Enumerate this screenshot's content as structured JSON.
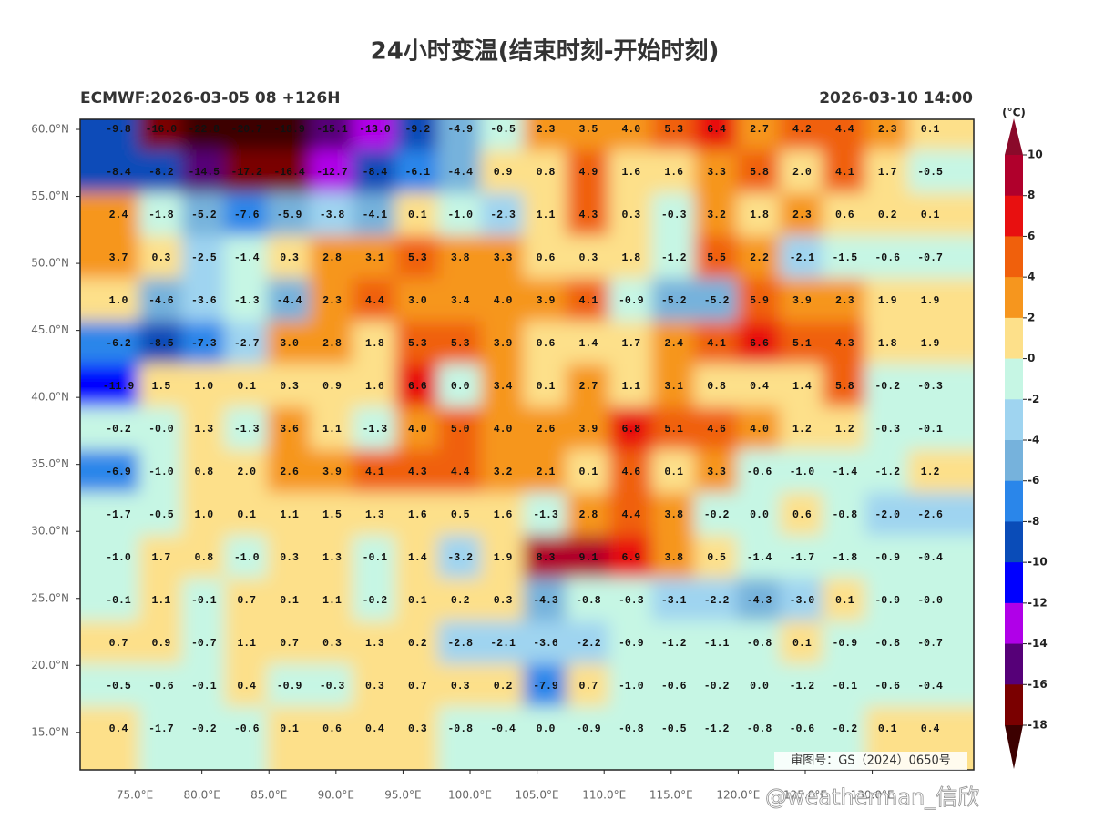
{
  "title": "24小时变温(结束时刻-开始时刻)",
  "subtitle_left": "ECMWF:2026-03-05 08 +126H",
  "subtitle_right": "2026-03-10 14:00",
  "map": {
    "lon_range": [
      70.92,
      137.57
    ],
    "lat_range": [
      12.2,
      60.75
    ],
    "lat_ticks": [
      {
        "value": 60,
        "label": "60.0°N"
      },
      {
        "value": 55,
        "label": "55.0°N"
      },
      {
        "value": 50,
        "label": "50.0°N"
      },
      {
        "value": 45,
        "label": "45.0°N"
      },
      {
        "value": 40,
        "label": "40.0°N"
      },
      {
        "value": 35,
        "label": "35.0°N"
      },
      {
        "value": 30,
        "label": "30.0°N"
      },
      {
        "value": 25,
        "label": "25.0°N"
      },
      {
        "value": 20,
        "label": "20.0°N"
      },
      {
        "value": 15,
        "label": "15.0°N"
      }
    ],
    "lon_ticks": [
      {
        "value": 75,
        "label": "75.0°E"
      },
      {
        "value": 80,
        "label": "80.0°E"
      },
      {
        "value": 85,
        "label": "85.0°E"
      },
      {
        "value": 90,
        "label": "90.0°E"
      },
      {
        "value": 95,
        "label": "95.0°E"
      },
      {
        "value": 100,
        "label": "100.0°E"
      },
      {
        "value": 105,
        "label": "105.0°E"
      },
      {
        "value": 110,
        "label": "110.0°E"
      },
      {
        "value": 115,
        "label": "115.0°E"
      },
      {
        "value": 120,
        "label": "120.0°E"
      },
      {
        "value": 125,
        "label": "125.0°E"
      },
      {
        "value": 130,
        "label": "130.0°E"
      }
    ],
    "grid": [
      [
        "-9.8",
        "-16.0",
        "-22.8",
        "-20.7",
        "-18.9",
        "-15.1",
        "-13.0",
        "-9.2",
        "-4.9",
        "-0.5",
        "2.3",
        "3.5",
        "4.0",
        "5.3",
        "6.4",
        "2.7",
        "4.2",
        "4.4",
        "2.3",
        "0.1"
      ],
      [
        "-8.4",
        "-8.2",
        "-14.5",
        "-17.2",
        "-16.4",
        "-12.7",
        "-8.4",
        "-6.1",
        "-4.4",
        "0.9",
        "0.8",
        "4.9",
        "1.6",
        "1.6",
        "3.3",
        "5.8",
        "2.0",
        "4.1",
        "1.7",
        "-0.5"
      ],
      [
        "2.4",
        "-1.8",
        "-5.2",
        "-7.6",
        "-5.9",
        "-3.8",
        "-4.1",
        "0.1",
        "-1.0",
        "-2.3",
        "1.1",
        "4.3",
        "0.3",
        "-0.3",
        "3.2",
        "1.8",
        "2.3",
        "0.6",
        "0.2",
        "0.1"
      ],
      [
        "3.7",
        "0.3",
        "-2.5",
        "-1.4",
        "0.3",
        "2.8",
        "3.1",
        "5.3",
        "3.8",
        "3.3",
        "0.6",
        "0.3",
        "1.8",
        "-1.2",
        "5.5",
        "2.2",
        "-2.1",
        "-1.5",
        "-0.6",
        "-0.7"
      ],
      [
        "1.0",
        "-4.6",
        "-3.6",
        "-1.3",
        "-4.4",
        "2.3",
        "4.4",
        "3.0",
        "3.4",
        "4.0",
        "3.9",
        "4.1",
        "-0.9",
        "-5.2",
        "-5.2",
        "5.9",
        "3.9",
        "2.3",
        "1.9",
        "1.9"
      ],
      [
        "-6.2",
        "-8.5",
        "-7.3",
        "-2.7",
        "3.0",
        "2.8",
        "1.8",
        "5.3",
        "5.3",
        "3.9",
        "0.6",
        "1.4",
        "1.7",
        "2.4",
        "4.1",
        "6.6",
        "5.1",
        "4.3",
        "1.8",
        "1.9"
      ],
      [
        "-11.9",
        "1.5",
        "1.0",
        "0.1",
        "0.3",
        "0.9",
        "1.6",
        "6.6",
        "0.0",
        "3.4",
        "0.1",
        "2.7",
        "1.1",
        "3.1",
        "0.8",
        "0.4",
        "1.4",
        "5.8",
        "-0.2",
        "-0.3"
      ],
      [
        "-0.2",
        "-0.0",
        "1.3",
        "-1.3",
        "3.6",
        "1.1",
        "-1.3",
        "4.0",
        "5.0",
        "4.0",
        "2.6",
        "3.9",
        "6.8",
        "5.1",
        "4.6",
        "4.0",
        "1.2",
        "1.2",
        "-0.3",
        "-0.1"
      ],
      [
        "-6.9",
        "-1.0",
        "0.8",
        "2.0",
        "2.6",
        "3.9",
        "4.1",
        "4.3",
        "4.4",
        "3.2",
        "2.1",
        "0.1",
        "4.6",
        "0.1",
        "3.3",
        "-0.6",
        "-1.0",
        "-1.4",
        "-1.2",
        "1.2"
      ],
      [
        "-1.7",
        "-0.5",
        "1.0",
        "0.1",
        "1.1",
        "1.5",
        "1.3",
        "1.6",
        "0.5",
        "1.6",
        "-1.3",
        "2.8",
        "4.4",
        "3.8",
        "-0.2",
        "0.0",
        "0.6",
        "-0.8",
        "-2.0",
        "-2.6"
      ],
      [
        "-1.0",
        "1.7",
        "0.8",
        "-1.0",
        "0.3",
        "1.3",
        "-0.1",
        "1.4",
        "-3.2",
        "1.9",
        "8.3",
        "9.1",
        "6.9",
        "3.8",
        "0.5",
        "-1.4",
        "-1.7",
        "-1.8",
        "-0.9",
        "-0.4"
      ],
      [
        "-0.1",
        "1.1",
        "-0.1",
        "0.7",
        "0.1",
        "1.1",
        "-0.2",
        "0.1",
        "0.2",
        "0.3",
        "-4.3",
        "-0.8",
        "-0.3",
        "-3.1",
        "-2.2",
        "-4.3",
        "-3.0",
        "0.1",
        "-0.9",
        "-0.0"
      ],
      [
        "0.7",
        "0.9",
        "-0.7",
        "1.1",
        "0.7",
        "0.3",
        "1.3",
        "0.2",
        "-2.8",
        "-2.1",
        "-3.6",
        "-2.2",
        "-0.9",
        "-1.2",
        "-1.1",
        "-0.8",
        "0.1",
        "-0.9",
        "-0.8",
        "-0.7"
      ],
      [
        "-0.5",
        "-0.6",
        "-0.1",
        "0.4",
        "-0.9",
        "-0.3",
        "0.3",
        "0.7",
        "0.3",
        "0.2",
        "-7.9",
        "0.7",
        "-1.0",
        "-0.6",
        "-0.2",
        "0.0",
        "-1.2",
        "-0.1",
        "-0.6",
        "-0.4"
      ],
      [
        "0.4",
        "-1.7",
        "-0.2",
        "-0.6",
        "0.1",
        "0.6",
        "0.4",
        "0.3",
        "-0.8",
        "-0.4",
        "0.0",
        "-0.9",
        "-0.8",
        "-0.5",
        "-1.2",
        "-0.8",
        "-0.6",
        "-0.2",
        "0.1",
        "0.4"
      ]
    ],
    "approval_number": "审图号：GS（2024）0650号"
  },
  "colorbar": {
    "unit": "(°C)",
    "ticks": [
      10,
      8,
      6,
      4,
      2,
      0,
      -2,
      -4,
      -6,
      -8,
      -10,
      -12,
      -14,
      -16,
      -18
    ],
    "colors": [
      "#b0002c",
      "#e81010",
      "#f0600c",
      "#f6961e",
      "#fde08a",
      "#c6f6e4",
      "#9fd4f0",
      "#76b2dc",
      "#2a86ea",
      "#0a4cb8",
      "#0000ff",
      "#b000e8",
      "#560078",
      "#7a0000"
    ],
    "over_color": "#8a0a2a",
    "under_color": "#3c0000"
  },
  "watermark": "@weatherman_信欣"
}
